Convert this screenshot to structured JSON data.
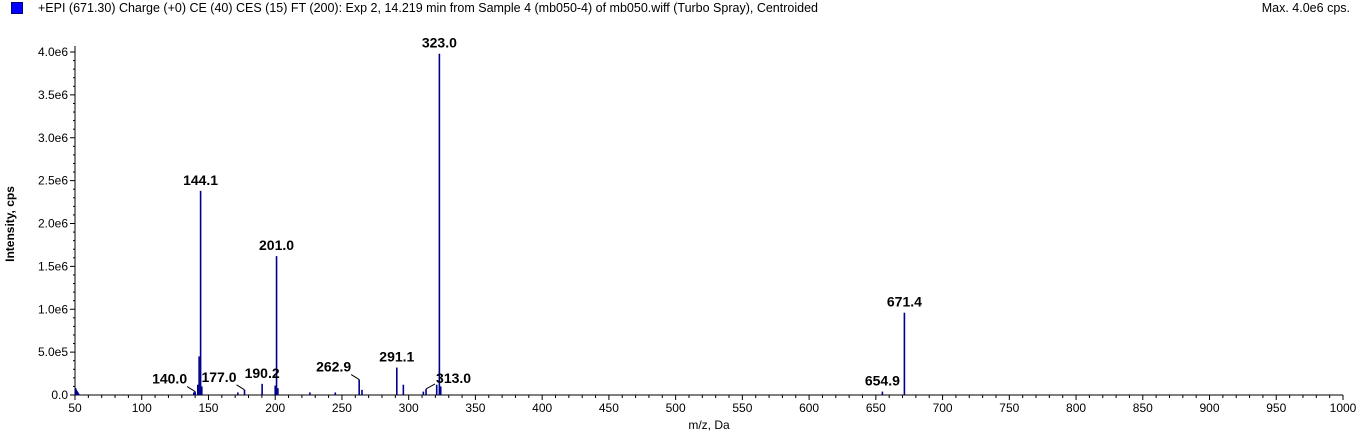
{
  "header": {
    "title": "+EPI (671.30) Charge (+0) CE (40) CES (15) FT (200): Exp 2, 14.219 min from Sample 4 (mb050-4) of mb050.wiff (Turbo Spray), Centroided",
    "max_label": "Max. 4.0e6 cps."
  },
  "colors": {
    "accent": "#00008b",
    "swatch": "#0000ff"
  },
  "chart_data": {
    "type": "bar",
    "xlabel": "m/z, Da",
    "ylabel": "Intensity, cps",
    "xlim": [
      50,
      1000
    ],
    "ylim": [
      0,
      4000000
    ],
    "xticks": [
      "50",
      "100",
      "150",
      "200",
      "250",
      "300",
      "350",
      "400",
      "450",
      "500",
      "550",
      "600",
      "650",
      "700",
      "750",
      "800",
      "850",
      "900",
      "950",
      "1000"
    ],
    "yticks": [
      {
        "value": 0,
        "label": "0.0"
      },
      {
        "value": 500000,
        "label": "5.0e5"
      },
      {
        "value": 1000000,
        "label": "1.0e6"
      },
      {
        "value": 1500000,
        "label": "1.5e6"
      },
      {
        "value": 2000000,
        "label": "2.0e6"
      },
      {
        "value": 2500000,
        "label": "2.5e6"
      },
      {
        "value": 3000000,
        "label": "3.0e6"
      },
      {
        "value": 3500000,
        "label": "3.5e6"
      },
      {
        "value": 4000000,
        "label": "4.0e6"
      }
    ],
    "peaks": [
      {
        "mz": 50.5,
        "i": 80000
      },
      {
        "mz": 51.0,
        "i": 40000
      },
      {
        "mz": 139.0,
        "i": 30000
      },
      {
        "mz": 140.0,
        "i": 40000
      },
      {
        "mz": 142.0,
        "i": 120000
      },
      {
        "mz": 143.0,
        "i": 450000
      },
      {
        "mz": 144.1,
        "i": 2380000
      },
      {
        "mz": 145.0,
        "i": 100000
      },
      {
        "mz": 172.0,
        "i": 30000
      },
      {
        "mz": 177.0,
        "i": 60000
      },
      {
        "mz": 190.2,
        "i": 130000
      },
      {
        "mz": 200.0,
        "i": 110000
      },
      {
        "mz": 201.0,
        "i": 1620000
      },
      {
        "mz": 202.0,
        "i": 80000
      },
      {
        "mz": 226.0,
        "i": 30000
      },
      {
        "mz": 245.0,
        "i": 30000
      },
      {
        "mz": 262.9,
        "i": 180000
      },
      {
        "mz": 265.0,
        "i": 60000
      },
      {
        "mz": 291.1,
        "i": 320000
      },
      {
        "mz": 296.0,
        "i": 120000
      },
      {
        "mz": 311.0,
        "i": 40000
      },
      {
        "mz": 313.0,
        "i": 70000
      },
      {
        "mz": 321.0,
        "i": 120000
      },
      {
        "mz": 323.0,
        "i": 3980000
      },
      {
        "mz": 324.0,
        "i": 100000
      },
      {
        "mz": 654.9,
        "i": 40000
      },
      {
        "mz": 671.4,
        "i": 960000
      }
    ],
    "peak_labels": [
      {
        "mz": 144.1,
        "i": 2380000,
        "text": "144.1",
        "anchor": "middle"
      },
      {
        "mz": 201.0,
        "i": 1620000,
        "text": "201.0",
        "anchor": "middle"
      },
      {
        "mz": 323.0,
        "i": 3980000,
        "text": "323.0",
        "anchor": "middle"
      },
      {
        "mz": 291.1,
        "i": 320000,
        "text": "291.1",
        "anchor": "middle"
      },
      {
        "mz": 671.4,
        "i": 960000,
        "text": "671.4",
        "anchor": "middle"
      },
      {
        "mz": 140.0,
        "i": 40000,
        "text": "140.0",
        "anchor": "end",
        "leader": true
      },
      {
        "mz": 177.0,
        "i": 60000,
        "text": "177.0",
        "anchor": "end",
        "leader": true
      },
      {
        "mz": 190.2,
        "i": 130000,
        "text": "190.2",
        "anchor": "middle"
      },
      {
        "mz": 262.9,
        "i": 180000,
        "text": "262.9",
        "anchor": "end",
        "leader": true
      },
      {
        "mz": 313.0,
        "i": 70000,
        "text": "313.0",
        "anchor": "start",
        "leader": true
      },
      {
        "mz": 654.9,
        "i": 40000,
        "text": "654.9",
        "anchor": "middle"
      }
    ]
  }
}
